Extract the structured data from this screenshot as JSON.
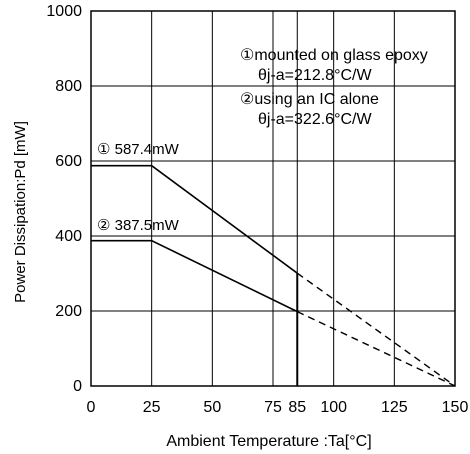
{
  "chart_data": {
    "type": "line",
    "xlabel": "Ambient Temperature :Ta[°C]",
    "ylabel": "Power Dissipation:Pd [mW]",
    "xlim": [
      0,
      150
    ],
    "ylim": [
      0,
      1000
    ],
    "x_ticks": [
      0,
      25,
      50,
      75,
      85,
      100,
      125,
      150
    ],
    "x_tick_labels": [
      "0",
      "25",
      "50",
      "75",
      "85",
      "100",
      "125",
      "150"
    ],
    "y_ticks": [
      0,
      200,
      400,
      600,
      800,
      1000
    ],
    "y_tick_labels": [
      "0",
      "200",
      "400",
      "600",
      "800",
      "1000"
    ],
    "grid": true,
    "series": [
      {
        "name": "①",
        "solid": {
          "x": [
            0,
            25,
            85
          ],
          "y": [
            587.4,
            587.4,
            300.8
          ]
        },
        "dashed": {
          "x": [
            85,
            150
          ],
          "y": [
            300.8,
            0
          ]
        }
      },
      {
        "name": "②",
        "solid": {
          "x": [
            0,
            25,
            85
          ],
          "y": [
            387.5,
            387.5,
            198.4
          ]
        },
        "dashed": {
          "x": [
            85,
            150
          ],
          "y": [
            198.4,
            0
          ]
        }
      }
    ],
    "series_labels": [
      "① 587.4mW",
      "② 387.5mW"
    ],
    "annotations": [
      "①mounted on glass epoxy",
      "θj-a=212.8°C/W",
      "②using an IC alone",
      "θj-a=322.6°C/W"
    ]
  }
}
